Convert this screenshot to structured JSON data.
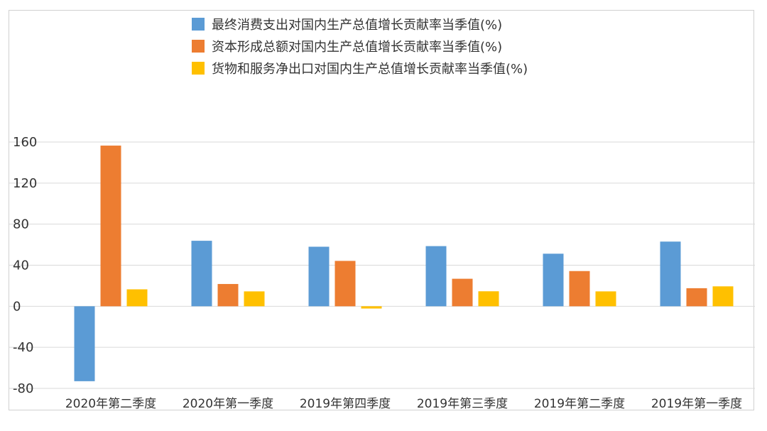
{
  "chart_data": {
    "type": "bar",
    "categories": [
      "2020年第二季度",
      "2020年第一季度",
      "2019年第四季度",
      "2019年第三季度",
      "2019年第二季度",
      "2019年第一季度"
    ],
    "series": [
      {
        "name": "最终消费支出对国内生产总值增长贡献率当季值(%)",
        "color": "#5B9BD5",
        "values": [
          -73,
          63.8,
          58,
          58.6,
          51.2,
          63
        ]
      },
      {
        "name": "资本形成总额对国内生产总值增长贡献率当季值(%)",
        "color": "#ED7D31",
        "values": [
          156.5,
          21.7,
          44.2,
          26.8,
          34.3,
          17.6
        ]
      },
      {
        "name": "货物和服务净出口对国内生产总值增长贡献率当季值(%)",
        "color": "#FFC000",
        "values": [
          16.5,
          14.5,
          -2.2,
          14.6,
          14.5,
          19.4
        ]
      }
    ],
    "yticks": [
      "160",
      "120",
      "80",
      "40",
      "0",
      "-40",
      "-80"
    ],
    "ylim": [
      -80,
      160
    ],
    "grid": true,
    "legend_position": "top"
  }
}
